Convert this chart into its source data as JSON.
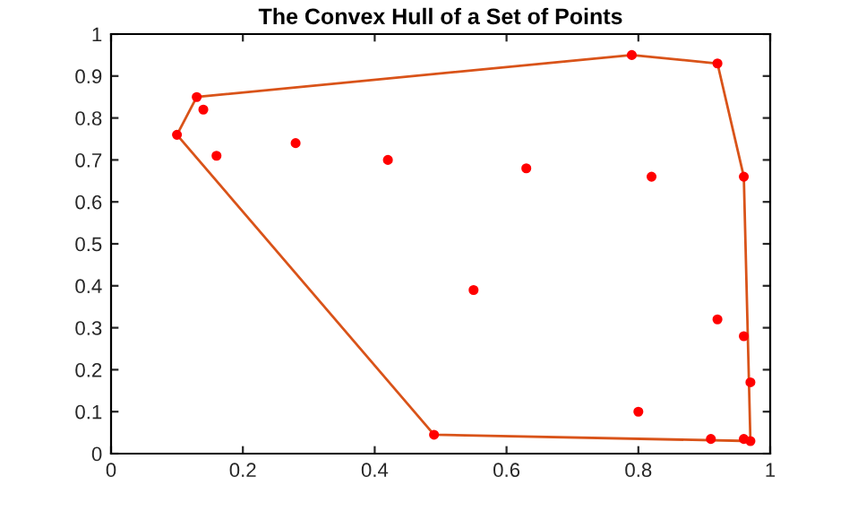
{
  "chart_data": {
    "type": "scatter",
    "title": "The Convex Hull of a Set of Points",
    "xlim": [
      0,
      1
    ],
    "ylim": [
      0,
      1
    ],
    "xticks": [
      0,
      0.2,
      0.4,
      0.6,
      0.8,
      1
    ],
    "yticks": [
      0,
      0.1,
      0.2,
      0.3,
      0.4,
      0.5,
      0.6,
      0.7,
      0.8,
      0.9,
      1
    ],
    "grid": false,
    "legend": false,
    "series": [
      {
        "color": "#ff0000",
        "marker": "circle",
        "x": [
          0.1,
          0.13,
          0.14,
          0.16,
          0.28,
          0.42,
          0.49,
          0.55,
          0.63,
          0.79,
          0.8,
          0.82,
          0.91,
          0.92,
          0.92,
          0.96,
          0.96,
          0.96,
          0.97,
          0.97
        ],
        "values": [
          0.76,
          0.85,
          0.82,
          0.71,
          0.74,
          0.7,
          0.045,
          0.39,
          0.68,
          0.95,
          0.1,
          0.66,
          0.035,
          0.93,
          0.32,
          0.66,
          0.28,
          0.035,
          0.17,
          0.03
        ]
      },
      {
        "type": "line",
        "color": "#d95319",
        "marker": "none",
        "line_style": "solid",
        "x": [
          0.1,
          0.13,
          0.79,
          0.92,
          0.96,
          0.97
        ],
        "values": [
          0.76,
          0.85,
          0.95,
          0.93,
          0.66,
          0.03
        ]
      },
      {
        "type": "line",
        "color": "#d95319",
        "marker": "none",
        "line_style": "solid",
        "x": [
          0.1,
          0.49,
          0.97
        ],
        "values": [
          0.76,
          0.045,
          0.03
        ]
      }
    ]
  }
}
